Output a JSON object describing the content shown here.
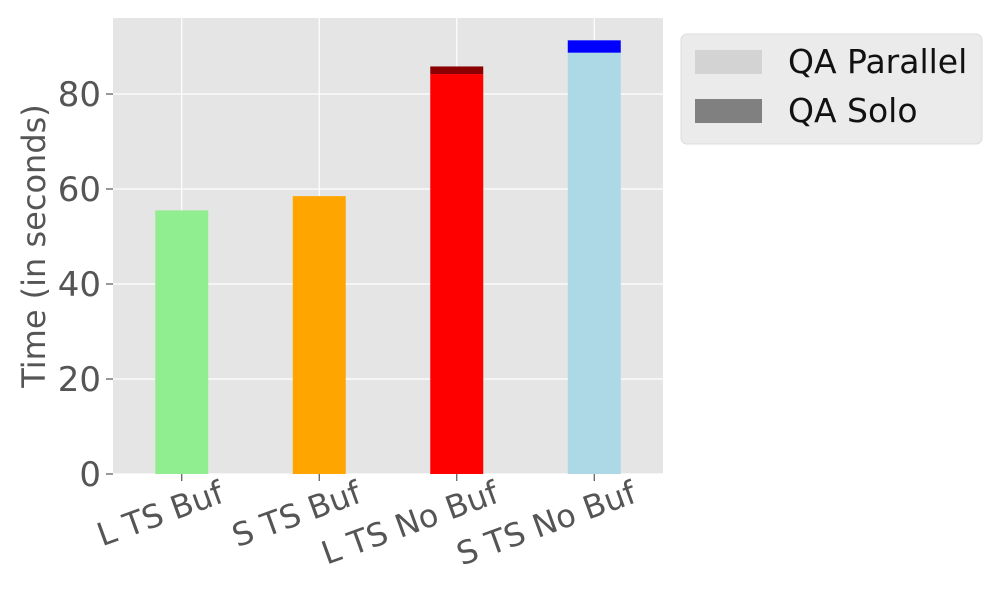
{
  "chart_data": {
    "type": "bar",
    "stacked": true,
    "categories": [
      "L TS Buf",
      "S TS Buf",
      "L TS No Buf",
      "S TS No Buf"
    ],
    "series": [
      {
        "name": "QA Parallel",
        "values": [
          55.5,
          58.5,
          84.2,
          88.7
        ],
        "bar_colors": [
          "#90ee90",
          "#ffa500",
          "#ff0000",
          "#add8e6"
        ],
        "legend_color": "#d3d3d3"
      },
      {
        "name": "QA Solo",
        "values": [
          0,
          0,
          1.6,
          2.6
        ],
        "bar_colors": [
          "#6b8e23",
          "#cc8400",
          "#8b0000",
          "#0000ff"
        ],
        "legend_color": "#808080"
      }
    ],
    "xlabel": "",
    "ylabel": "Time (in seconds)",
    "ylim": [
      0,
      96
    ],
    "yticks": [
      0,
      20,
      40,
      60,
      80
    ],
    "grid": true,
    "background": "#e5e5e5",
    "grid_color": "#ffffff",
    "legend_position": "outside-top-right",
    "xtick_rotation": -20
  }
}
